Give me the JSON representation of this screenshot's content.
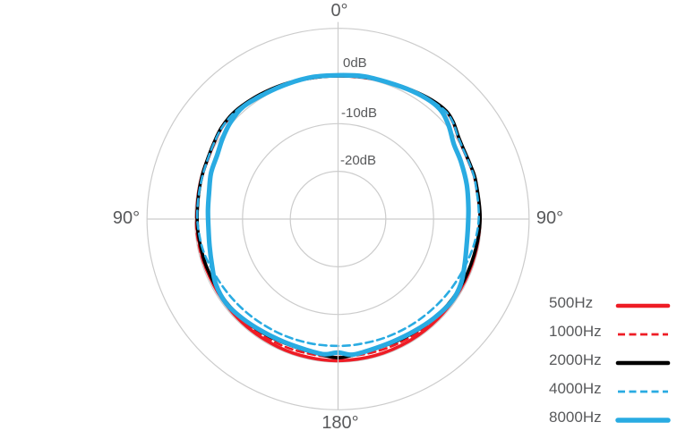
{
  "page": {
    "background": "#ffffff"
  },
  "axis_labels": {
    "top": "0°",
    "left": "90°",
    "right": "90°",
    "bottom": "180°"
  },
  "radial_labels": {
    "zero": "0dB",
    "minus10": "-10dB",
    "minus20": "-20dB"
  },
  "colors": {
    "red": "#ee1c25",
    "blue": "#29abe2",
    "black": "#000000",
    "grid": "#cccccc",
    "text": "#58595b"
  },
  "chart_data": {
    "type": "polar-line",
    "angle_unit": "degrees",
    "radial_unit": "dB",
    "angle_tick_labels": [
      "0°",
      "90°",
      "180°",
      "90°"
    ],
    "radial_tick_labels": [
      "0dB",
      "-10dB",
      "-20dB"
    ],
    "radial_ticks_db": [
      0,
      -10,
      -20
    ],
    "outer_ring_db": 10,
    "ring_spacing_db": 10,
    "grid_color": "#cccccc",
    "legend_position": "bottom-right",
    "series": [
      {
        "name": "500Hz",
        "color": "#ee1c25",
        "line": "solid",
        "width": 3.6,
        "points": [
          [
            -180,
            -0.3
          ],
          [
            -168,
            -0.35
          ],
          [
            -155,
            -0.4
          ],
          [
            -140,
            -0.45
          ],
          [
            -125,
            -0.5
          ],
          [
            -110,
            -0.5
          ],
          [
            -98,
            -0.5
          ],
          [
            -90,
            -0.45
          ],
          [
            -80,
            -0.3
          ],
          [
            -72,
            -0.1
          ],
          [
            -64,
            0.1
          ],
          [
            -58,
            0.5
          ],
          [
            -52,
            1.0
          ],
          [
            -45,
            1.2
          ],
          [
            -38,
            1.0
          ],
          [
            -30,
            0.7
          ],
          [
            -20,
            0.35
          ],
          [
            -10,
            0.1
          ],
          [
            0,
            0
          ],
          [
            10,
            0.15
          ],
          [
            20,
            0.5
          ],
          [
            30,
            1.1
          ],
          [
            38,
            1.7
          ],
          [
            45,
            2.0
          ],
          [
            50,
            1.5
          ],
          [
            55,
            0.6
          ],
          [
            60,
            0.1
          ],
          [
            68,
            -0.1
          ],
          [
            75,
            -0.15
          ],
          [
            90,
            -0.3
          ],
          [
            105,
            -0.4
          ],
          [
            120,
            -0.45
          ],
          [
            135,
            -0.45
          ],
          [
            150,
            -0.4
          ],
          [
            165,
            -0.35
          ]
        ]
      },
      {
        "name": "1000Hz",
        "color": "#ee1c25",
        "line": "dashed",
        "width": 2.6,
        "points": [
          [
            -180,
            -1.1
          ],
          [
            -168,
            -1.1
          ],
          [
            -155,
            -1.0
          ],
          [
            -140,
            -0.8
          ],
          [
            -125,
            -0.6
          ],
          [
            -110,
            -0.4
          ],
          [
            -98,
            -0.3
          ],
          [
            -90,
            -0.3
          ],
          [
            -80,
            -0.2
          ],
          [
            -72,
            0.0
          ],
          [
            -64,
            0.2
          ],
          [
            -58,
            0.6
          ],
          [
            -52,
            1.1
          ],
          [
            -45,
            1.3
          ],
          [
            -38,
            1.1
          ],
          [
            -30,
            0.8
          ],
          [
            -20,
            0.4
          ],
          [
            -10,
            0.15
          ],
          [
            0,
            0.05
          ],
          [
            10,
            0.2
          ],
          [
            20,
            0.55
          ],
          [
            30,
            1.15
          ],
          [
            38,
            1.75
          ],
          [
            45,
            2.1
          ],
          [
            50,
            1.6
          ],
          [
            55,
            0.7
          ],
          [
            60,
            0.2
          ],
          [
            68,
            0.0
          ],
          [
            75,
            -0.05
          ],
          [
            90,
            -0.2
          ],
          [
            105,
            -0.35
          ],
          [
            120,
            -0.55
          ],
          [
            135,
            -0.8
          ],
          [
            150,
            -1.0
          ],
          [
            165,
            -1.1
          ]
        ]
      },
      {
        "name": "2000Hz",
        "color": "#000000",
        "line": "solid",
        "width": 3.6,
        "points": [
          [
            -180,
            -0.9
          ],
          [
            -172,
            -1.4
          ],
          [
            -162,
            -1.7
          ],
          [
            -150,
            -1.5
          ],
          [
            -138,
            -1.1
          ],
          [
            -125,
            -0.8
          ],
          [
            -110,
            -0.7
          ],
          [
            -98,
            -0.6
          ],
          [
            -90,
            -0.5
          ],
          [
            -80,
            -0.35
          ],
          [
            -72,
            -0.1
          ],
          [
            -64,
            0.15
          ],
          [
            -58,
            0.55
          ],
          [
            -52,
            1.05
          ],
          [
            -45,
            1.25
          ],
          [
            -38,
            1.05
          ],
          [
            -30,
            0.75
          ],
          [
            -20,
            0.4
          ],
          [
            -10,
            0.1
          ],
          [
            0,
            0.0
          ],
          [
            10,
            0.2
          ],
          [
            20,
            0.55
          ],
          [
            30,
            1.15
          ],
          [
            38,
            1.75
          ],
          [
            45,
            2.05
          ],
          [
            50,
            1.55
          ],
          [
            55,
            0.65
          ],
          [
            60,
            0.15
          ],
          [
            68,
            -0.05
          ],
          [
            75,
            -0.1
          ],
          [
            90,
            -0.25
          ],
          [
            105,
            -0.55
          ],
          [
            120,
            -0.7
          ],
          [
            135,
            -1.0
          ],
          [
            150,
            -1.5
          ],
          [
            162,
            -1.7
          ],
          [
            172,
            -1.4
          ]
        ]
      },
      {
        "name": "4000Hz",
        "color": "#29abe2",
        "line": "dashed",
        "width": 2.6,
        "points": [
          [
            -180,
            -3.4
          ],
          [
            -168,
            -3.3
          ],
          [
            -155,
            -3.1
          ],
          [
            -142,
            -2.8
          ],
          [
            -130,
            -2.4
          ],
          [
            -118,
            -1.9
          ],
          [
            -105,
            -1.1
          ],
          [
            -95,
            -0.7
          ],
          [
            -88,
            -0.5
          ],
          [
            -80,
            -0.4
          ],
          [
            -72,
            -0.2
          ],
          [
            -64,
            0.1
          ],
          [
            -58,
            0.5
          ],
          [
            -52,
            0.95
          ],
          [
            -45,
            1.15
          ],
          [
            -38,
            0.95
          ],
          [
            -30,
            0.65
          ],
          [
            -20,
            0.3
          ],
          [
            -10,
            0.05
          ],
          [
            0,
            -0.05
          ],
          [
            10,
            0.1
          ],
          [
            20,
            0.45
          ],
          [
            30,
            1.05
          ],
          [
            38,
            1.6
          ],
          [
            45,
            1.9
          ],
          [
            50,
            1.45
          ],
          [
            55,
            0.55
          ],
          [
            60,
            0.05
          ],
          [
            68,
            -0.15
          ],
          [
            75,
            -0.25
          ],
          [
            88,
            -0.5
          ],
          [
            98,
            -0.9
          ],
          [
            108,
            -1.5
          ],
          [
            120,
            -2.1
          ],
          [
            132,
            -2.6
          ],
          [
            145,
            -3.0
          ],
          [
            158,
            -3.25
          ],
          [
            170,
            -3.4
          ]
        ]
      },
      {
        "name": "8000Hz",
        "color": "#29abe2",
        "line": "solid",
        "width": 5.2,
        "points": [
          [
            -180,
            -2.0
          ],
          [
            -174,
            -1.5
          ],
          [
            -166,
            -1.8
          ],
          [
            -156,
            -1.85
          ],
          [
            -146,
            -1.6
          ],
          [
            -136,
            -1.1
          ],
          [
            -127,
            -0.65
          ],
          [
            -118,
            -1.0
          ],
          [
            -110,
            -1.9
          ],
          [
            -102,
            -2.5
          ],
          [
            -94,
            -2.8
          ],
          [
            -86,
            -2.7
          ],
          [
            -78,
            -2.4
          ],
          [
            -70,
            -1.7
          ],
          [
            -62,
            -1.35
          ],
          [
            -55,
            -0.5
          ],
          [
            -48,
            0.3
          ],
          [
            -40,
            0.8
          ],
          [
            -30,
            0.4
          ],
          [
            -20,
            0.25
          ],
          [
            -10,
            0.25
          ],
          [
            0,
            0.15
          ],
          [
            10,
            0.4
          ],
          [
            20,
            0.5
          ],
          [
            30,
            1.0
          ],
          [
            38,
            1.4
          ],
          [
            44,
            1.3
          ],
          [
            50,
            0.3
          ],
          [
            57,
            -1.1
          ],
          [
            65,
            -1.6
          ],
          [
            75,
            -2.1
          ],
          [
            85,
            -2.6
          ],
          [
            94,
            -2.75
          ],
          [
            102,
            -2.5
          ],
          [
            110,
            -1.8
          ],
          [
            118,
            -0.9
          ],
          [
            126,
            -0.6
          ],
          [
            136,
            -1.1
          ],
          [
            146,
            -1.6
          ],
          [
            156,
            -1.85
          ],
          [
            166,
            -1.75
          ],
          [
            174,
            -1.4
          ]
        ]
      }
    ]
  }
}
